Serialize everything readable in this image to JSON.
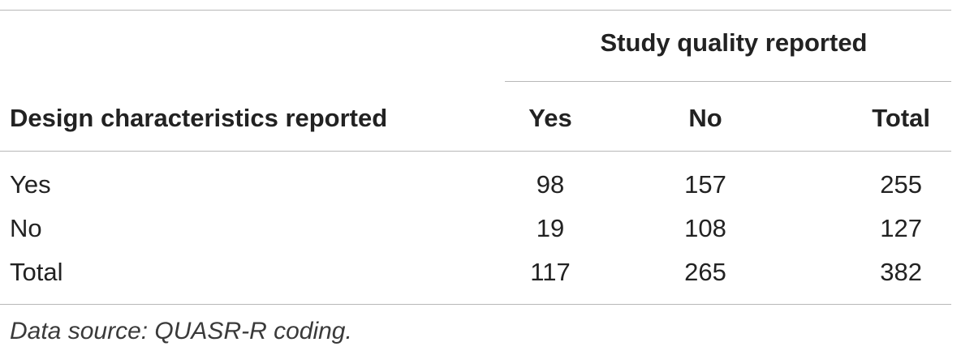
{
  "table": {
    "group_header": "Study quality reported",
    "row_header": "Design characteristics reported",
    "columns": [
      "Yes",
      "No",
      "Total"
    ],
    "rows": [
      {
        "label": "Yes",
        "values": [
          "98",
          "157",
          "255"
        ]
      },
      {
        "label": "No",
        "values": [
          "19",
          "108",
          "127"
        ]
      },
      {
        "label": "Total",
        "values": [
          "117",
          "265",
          "382"
        ]
      }
    ]
  },
  "footnote": "Data source: QUASR-R coding."
}
